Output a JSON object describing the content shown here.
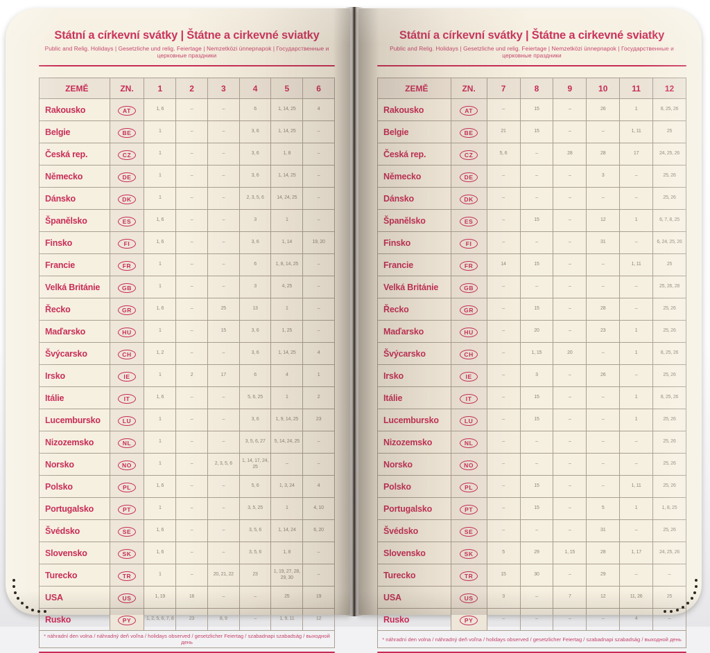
{
  "book": {
    "title": "Státní a církevní svátky | Štátne a cirkevné sviatky",
    "subtitle": "Public and Relig. Holidays | Gesetzliche und relig. Feiertage | Nemzetközi ünnepnapok | Государственные и церковные праздники",
    "footnote": "* náhradní den volna / náhradný deň voľna / holidays observed / gesetzlicher Feiertag / szabadnapi szabadság / выходной день",
    "accent_color": "#c72b55",
    "page_color": "#f6f0e1"
  },
  "pages": [
    {
      "side": "left",
      "columns": [
        "ZEMĚ",
        "ZN.",
        "1",
        "2",
        "3",
        "4",
        "5",
        "6"
      ],
      "rows": [
        {
          "country": "Rakousko",
          "code": "AT",
          "values": [
            "1, 6",
            "–",
            "–",
            "6",
            "1, 14, 25",
            "4"
          ]
        },
        {
          "country": "Belgie",
          "code": "BE",
          "values": [
            "1",
            "–",
            "–",
            "3, 6",
            "1, 14, 25",
            "–"
          ]
        },
        {
          "country": "Česká rep.",
          "code": "CZ",
          "values": [
            "1",
            "–",
            "–",
            "3, 6",
            "1, 8",
            "–"
          ]
        },
        {
          "country": "Německo",
          "code": "DE",
          "values": [
            "1",
            "–",
            "–",
            "3, 6",
            "1, 14, 25",
            "–"
          ]
        },
        {
          "country": "Dánsko",
          "code": "DK",
          "values": [
            "1",
            "–",
            "–",
            "2, 3, 5, 6",
            "14, 24, 25",
            "–"
          ]
        },
        {
          "country": "Španělsko",
          "code": "ES",
          "values": [
            "1, 6",
            "–",
            "–",
            "3",
            "1",
            "–"
          ]
        },
        {
          "country": "Finsko",
          "code": "FI",
          "values": [
            "1, 6",
            "–",
            "–",
            "3, 6",
            "1, 14",
            "19, 20"
          ]
        },
        {
          "country": "Francie",
          "code": "FR",
          "values": [
            "1",
            "–",
            "–",
            "6",
            "1, 8, 14, 25",
            "–"
          ]
        },
        {
          "country": "Velká Británie",
          "code": "GB",
          "values": [
            "1",
            "–",
            "–",
            "3",
            "4, 25",
            "–"
          ]
        },
        {
          "country": "Řecko",
          "code": "GR",
          "values": [
            "1, 6",
            "–",
            "25",
            "13",
            "1",
            "–"
          ]
        },
        {
          "country": "Maďarsko",
          "code": "HU",
          "values": [
            "1",
            "–",
            "15",
            "3, 6",
            "1, 25",
            "–"
          ]
        },
        {
          "country": "Švýcarsko",
          "code": "CH",
          "values": [
            "1, 2",
            "–",
            "–",
            "3, 6",
            "1, 14, 25",
            "4"
          ]
        },
        {
          "country": "Irsko",
          "code": "IE",
          "values": [
            "1",
            "2",
            "17",
            "6",
            "4",
            "1"
          ]
        },
        {
          "country": "Itálie",
          "code": "IT",
          "values": [
            "1, 6",
            "–",
            "–",
            "5, 6, 25",
            "1",
            "2"
          ]
        },
        {
          "country": "Lucembursko",
          "code": "LU",
          "values": [
            "1",
            "–",
            "–",
            "3, 6",
            "1, 9, 14, 25",
            "23"
          ]
        },
        {
          "country": "Nizozemsko",
          "code": "NL",
          "values": [
            "1",
            "–",
            "–",
            "3, 5, 6, 27",
            "5, 14, 24, 25",
            "–"
          ]
        },
        {
          "country": "Norsko",
          "code": "NO",
          "values": [
            "1",
            "–",
            "2, 3, 5, 6",
            "1, 14, 17, 24, 25",
            "–",
            "–"
          ]
        },
        {
          "country": "Polsko",
          "code": "PL",
          "values": [
            "1, 6",
            "–",
            "–",
            "5, 6",
            "1, 3, 24",
            "4"
          ]
        },
        {
          "country": "Portugalsko",
          "code": "PT",
          "values": [
            "1",
            "–",
            "–",
            "3, 5, 25",
            "1",
            "4, 10"
          ]
        },
        {
          "country": "Švédsko",
          "code": "SE",
          "values": [
            "1, 6",
            "–",
            "–",
            "3, 5, 6",
            "1, 14, 24",
            "6, 20"
          ]
        },
        {
          "country": "Slovensko",
          "code": "SK",
          "values": [
            "1, 6",
            "–",
            "–",
            "3, 5, 6",
            "1, 8",
            "–"
          ]
        },
        {
          "country": "Turecko",
          "code": "TR",
          "values": [
            "1",
            "–",
            "20, 21, 22",
            "23",
            "1, 19, 27, 28, 29, 30",
            "–"
          ]
        },
        {
          "country": "USA",
          "code": "US",
          "values": [
            "1, 19",
            "16",
            "–",
            "–",
            "25",
            "19"
          ]
        },
        {
          "country": "Rusko",
          "code": "PY",
          "values": [
            "1, 2, 5, 6, 7, 8",
            "23",
            "8, 9",
            "–",
            "1, 9, 11",
            "12"
          ]
        }
      ]
    },
    {
      "side": "right",
      "columns": [
        "ZEMĚ",
        "ZN.",
        "7",
        "8",
        "9",
        "10",
        "11",
        "12"
      ],
      "rows": [
        {
          "country": "Rakousko",
          "code": "AT",
          "values": [
            "–",
            "15",
            "–",
            "26",
            "1",
            "8, 25, 26"
          ]
        },
        {
          "country": "Belgie",
          "code": "BE",
          "values": [
            "21",
            "15",
            "–",
            "–",
            "1, 11",
            "25"
          ]
        },
        {
          "country": "Česká rep.",
          "code": "CZ",
          "values": [
            "5, 6",
            "–",
            "28",
            "28",
            "17",
            "24, 25, 26"
          ]
        },
        {
          "country": "Německo",
          "code": "DE",
          "values": [
            "–",
            "–",
            "–",
            "3",
            "–",
            "25, 26"
          ]
        },
        {
          "country": "Dánsko",
          "code": "DK",
          "values": [
            "–",
            "–",
            "–",
            "–",
            "–",
            "25, 26"
          ]
        },
        {
          "country": "Španělsko",
          "code": "ES",
          "values": [
            "–",
            "15",
            "–",
            "12",
            "1",
            "6, 7, 8, 25"
          ]
        },
        {
          "country": "Finsko",
          "code": "FI",
          "values": [
            "–",
            "–",
            "–",
            "31",
            "–",
            "6, 24, 25, 26"
          ]
        },
        {
          "country": "Francie",
          "code": "FR",
          "values": [
            "14",
            "15",
            "–",
            "–",
            "1, 11",
            "25"
          ]
        },
        {
          "country": "Velká Británie",
          "code": "GB",
          "values": [
            "–",
            "–",
            "–",
            "–",
            "–",
            "25, 26, 28"
          ]
        },
        {
          "country": "Řecko",
          "code": "GR",
          "values": [
            "–",
            "15",
            "–",
            "28",
            "–",
            "25, 26"
          ]
        },
        {
          "country": "Maďarsko",
          "code": "HU",
          "values": [
            "–",
            "20",
            "–",
            "23",
            "1",
            "25, 26"
          ]
        },
        {
          "country": "Švýcarsko",
          "code": "CH",
          "values": [
            "–",
            "1, 15",
            "20",
            "–",
            "1",
            "8, 25, 26"
          ]
        },
        {
          "country": "Irsko",
          "code": "IE",
          "values": [
            "–",
            "3",
            "–",
            "26",
            "–",
            "25, 26"
          ]
        },
        {
          "country": "Itálie",
          "code": "IT",
          "values": [
            "–",
            "15",
            "–",
            "–",
            "1",
            "8, 25, 26"
          ]
        },
        {
          "country": "Lucembursko",
          "code": "LU",
          "values": [
            "–",
            "15",
            "–",
            "–",
            "1",
            "25, 26"
          ]
        },
        {
          "country": "Nizozemsko",
          "code": "NL",
          "values": [
            "–",
            "–",
            "–",
            "–",
            "–",
            "25, 26"
          ]
        },
        {
          "country": "Norsko",
          "code": "NO",
          "values": [
            "–",
            "–",
            "–",
            "–",
            "–",
            "25, 26"
          ]
        },
        {
          "country": "Polsko",
          "code": "PL",
          "values": [
            "–",
            "15",
            "–",
            "–",
            "1, 11",
            "25, 26"
          ]
        },
        {
          "country": "Portugalsko",
          "code": "PT",
          "values": [
            "–",
            "15",
            "–",
            "5",
            "1",
            "1, 8, 25"
          ]
        },
        {
          "country": "Švédsko",
          "code": "SE",
          "values": [
            "–",
            "–",
            "–",
            "31",
            "–",
            "25, 26"
          ]
        },
        {
          "country": "Slovensko",
          "code": "SK",
          "values": [
            "5",
            "29",
            "1, 15",
            "28",
            "1, 17",
            "24, 25, 26"
          ]
        },
        {
          "country": "Turecko",
          "code": "TR",
          "values": [
            "15",
            "30",
            "–",
            "29",
            "–",
            "–"
          ]
        },
        {
          "country": "USA",
          "code": "US",
          "values": [
            "3",
            "–",
            "7",
            "12",
            "11, 26",
            "25"
          ]
        },
        {
          "country": "Rusko",
          "code": "PY",
          "values": [
            "–",
            "–",
            "–",
            "–",
            "4",
            "–"
          ]
        }
      ]
    }
  ]
}
